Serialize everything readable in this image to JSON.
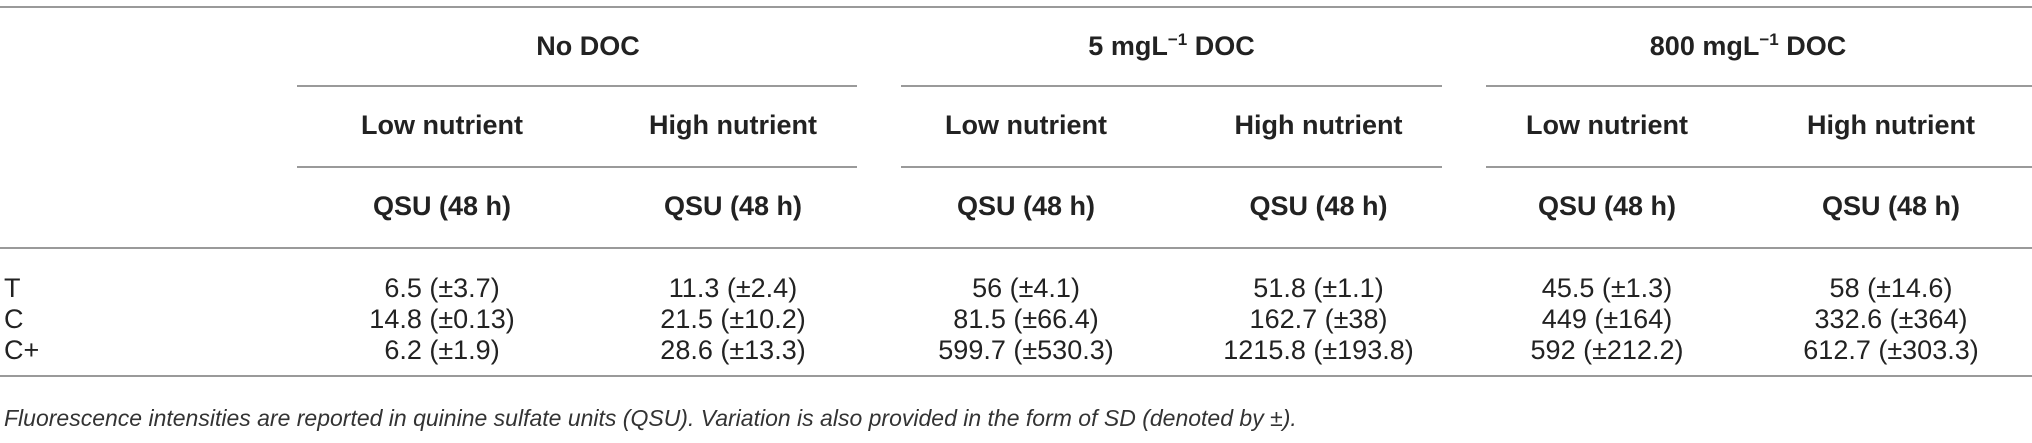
{
  "groups": [
    "No DOC",
    "5 mgL",
    "800 mgL"
  ],
  "group_sup": [
    "",
    "−1",
    "−1"
  ],
  "group_suffix": [
    "",
    " DOC",
    " DOC"
  ],
  "subheaders": [
    "Low nutrient",
    "High nutrient",
    "Low nutrient",
    "High nutrient",
    "Low nutrient",
    "High nutrient"
  ],
  "units": [
    "QSU (48 h)",
    "QSU (48 h)",
    "QSU (48 h)",
    "QSU (48 h)",
    "QSU (48 h)",
    "QSU (48 h)"
  ],
  "rows": [
    {
      "label": "T",
      "cells": [
        "6.5 (±3.7)",
        "11.3 (±2.4)",
        "56 (±4.1)",
        "51.8 (±1.1)",
        "45.5 (±1.3)",
        "58 (±14.6)"
      ]
    },
    {
      "label": "C",
      "cells": [
        "14.8 (±0.13)",
        "21.5 (±10.2)",
        "81.5 (±66.4)",
        "162.7 (±38)",
        "449 (±164)",
        "332.6 (±364)"
      ]
    },
    {
      "label": "C+",
      "cells": [
        "6.2 (±1.9)",
        "28.6 (±13.3)",
        "599.7 (±530.3)",
        "1215.8 (±193.8)",
        "592 (±212.2)",
        "612.7 (±303.3)"
      ]
    }
  ],
  "footnote": "Fluorescence intensities are reported in quinine sulfate units (QSU). Variation is also provided in the form of SD (denoted by ±)."
}
